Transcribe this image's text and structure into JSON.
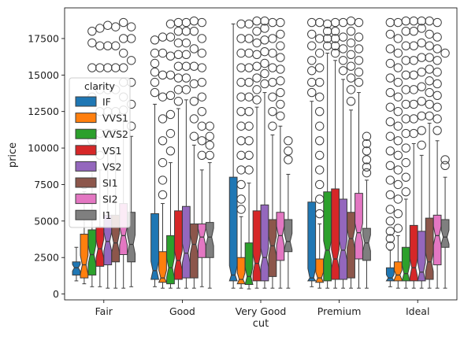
{
  "chart_data": {
    "type": "boxplot",
    "xlabel": "cut",
    "ylabel": "price",
    "categories": [
      "Fair",
      "Good",
      "Very Good",
      "Premium",
      "Ideal"
    ],
    "ylim": [
      -400,
      19600
    ],
    "yticks": [
      0,
      2500,
      5000,
      7500,
      10000,
      12500,
      15000,
      17500
    ],
    "ytick_labels": [
      "0",
      "2500",
      "5000",
      "7500",
      "10000",
      "12500",
      "15000",
      "17500"
    ],
    "notched": true,
    "legend": {
      "title": "clarity",
      "placement": "center-left"
    },
    "series": [
      {
        "name": "IF",
        "color": "#1f77b4",
        "boxes": [
          {
            "q1": 1300,
            "median": 1800,
            "q3": 2200,
            "wlo": 900,
            "whi": 3200,
            "outliers": []
          },
          {
            "q1": 1000,
            "median": 1600,
            "q3": 5500,
            "wlo": 500,
            "whi": 13000,
            "outliers": [
              13800,
              14500,
              15200,
              15800,
              16500,
              17400
            ]
          },
          {
            "q1": 900,
            "median": 1300,
            "q3": 8000,
            "wlo": 400,
            "whi": 18500,
            "outliers": []
          },
          {
            "q1": 900,
            "median": 1100,
            "q3": 6300,
            "wlo": 500,
            "whi": 13200,
            "outliers": [
              13800,
              14500,
              15300,
              16000,
              17000,
              17800,
              18600
            ]
          },
          {
            "q1": 900,
            "median": 1100,
            "q3": 1800,
            "wlo": 500,
            "whi": 3000,
            "outliers": [
              3300,
              3800,
              4300,
              5000,
              5800,
              6800,
              7800,
              8800,
              9800,
              10800,
              11800,
              12800,
              13800,
              14800,
              15800,
              16800,
              17800,
              18600
            ]
          }
        ]
      },
      {
        "name": "VVS1",
        "color": "#ff7f0e",
        "boxes": [
          {
            "q1": 1100,
            "median": 2000,
            "q3": 4100,
            "wlo": 700,
            "whi": 7000,
            "outliers": [
              7500
            ]
          },
          {
            "q1": 800,
            "median": 1100,
            "q3": 2900,
            "wlo": 400,
            "whi": 6200,
            "outliers": [
              6800,
              7800,
              9000,
              10500,
              12000,
              13500,
              15000,
              16500,
              17600
            ]
          },
          {
            "q1": 700,
            "median": 1000,
            "q3": 2500,
            "wlo": 400,
            "whi": 5300,
            "outliers": [
              5800,
              6500,
              7500,
              8500,
              9500,
              10500,
              11500,
              12500,
              13500,
              14500,
              15500,
              16500,
              17500,
              18500
            ]
          },
          {
            "q1": 800,
            "median": 1100,
            "q3": 2400,
            "wlo": 400,
            "whi": 4800,
            "outliers": [
              5500,
              6500,
              7500,
              8500,
              9500,
              10500,
              11500,
              12500,
              13500,
              14500,
              15500,
              16500,
              17500,
              18600
            ]
          },
          {
            "q1": 900,
            "median": 1300,
            "q3": 2200,
            "wlo": 400,
            "whi": 4000,
            "outliers": [
              4500,
              5500,
              6500,
              7500,
              8500,
              9500,
              10500,
              11500,
              12500,
              13500,
              14500,
              15500,
              16500,
              17500,
              18600
            ]
          }
        ]
      },
      {
        "name": "VVS2",
        "color": "#2ca02c",
        "boxes": [
          {
            "q1": 1300,
            "median": 2700,
            "q3": 4400,
            "wlo": 500,
            "whi": 9000,
            "outliers": [
              10500,
              12000,
              13500,
              15500,
              17200,
              18000
            ]
          },
          {
            "q1": 700,
            "median": 1800,
            "q3": 4000,
            "wlo": 400,
            "whi": 9000,
            "outliers": [
              9800,
              11000,
              12300,
              13600,
              15000,
              16300,
              17600,
              18500
            ]
          },
          {
            "q1": 650,
            "median": 1200,
            "q3": 3500,
            "wlo": 350,
            "whi": 7600,
            "outliers": [
              8500,
              9500,
              10500,
              11500,
              12500,
              13500,
              14500,
              15500,
              16500,
              17500,
              18500
            ]
          },
          {
            "q1": 900,
            "median": 3000,
            "q3": 7000,
            "wlo": 400,
            "whi": 16500,
            "outliers": [
              17000,
              17500,
              18000,
              18500
            ]
          },
          {
            "q1": 900,
            "median": 1400,
            "q3": 3200,
            "wlo": 400,
            "whi": 6500,
            "outliers": [
              7000,
              8000,
              9000,
              10000,
              11000,
              12000,
              13000,
              14000,
              15000,
              16000,
              17000,
              18000,
              18700
            ]
          }
        ]
      },
      {
        "name": "VS1",
        "color": "#d62728",
        "boxes": [
          {
            "q1": 1900,
            "median": 3100,
            "q3": 4600,
            "wlo": 500,
            "whi": 8500,
            "outliers": [
              9500,
              11000,
              12500,
              14000,
              15500,
              17000,
              18200
            ]
          },
          {
            "q1": 1000,
            "median": 2300,
            "q3": 5700,
            "wlo": 400,
            "whi": 12700,
            "outliers": [
              13200,
              14000,
              14800,
              15600,
              16400,
              17200,
              18000,
              18600
            ]
          },
          {
            "q1": 900,
            "median": 2100,
            "q3": 5700,
            "wlo": 400,
            "whi": 12800,
            "outliers": [
              13300,
              14000,
              14800,
              15600,
              16400,
              17200,
              18000,
              18700
            ]
          },
          {
            "q1": 1000,
            "median": 2400,
            "q3": 7200,
            "wlo": 400,
            "whi": 16000,
            "outliers": [
              16500,
              17000,
              17500,
              18000,
              18600
            ]
          },
          {
            "q1": 900,
            "median": 1800,
            "q3": 4700,
            "wlo": 400,
            "whi": 10300,
            "outliers": [
              11000,
              12000,
              13000,
              14000,
              15000,
              16000,
              17000,
              18000,
              18700
            ]
          }
        ]
      },
      {
        "name": "VS2",
        "color": "#9467bd",
        "boxes": [
          {
            "q1": 2000,
            "median": 3600,
            "q3": 5400,
            "wlo": 400,
            "whi": 10000,
            "outliers": [
              11000,
              12500,
              14000,
              15500,
              17000,
              18400
            ]
          },
          {
            "q1": 1100,
            "median": 2800,
            "q3": 6000,
            "wlo": 400,
            "whi": 13300,
            "outliers": [
              14000,
              14800,
              15600,
              16400,
              17200,
              18000,
              18600
            ]
          },
          {
            "q1": 900,
            "median": 2500,
            "q3": 6100,
            "wlo": 400,
            "whi": 13800,
            "outliers": [
              14400,
              15100,
              15800,
              16600,
              17400,
              18200,
              18700
            ]
          },
          {
            "q1": 1000,
            "median": 3000,
            "q3": 6500,
            "wlo": 400,
            "whi": 14700,
            "outliers": [
              15300,
              16000,
              16800,
              17600,
              18600
            ]
          },
          {
            "q1": 900,
            "median": 1500,
            "q3": 4300,
            "wlo": 400,
            "whi": 9500,
            "outliers": [
              10200,
              11200,
              12200,
              13200,
              14200,
              15200,
              16200,
              17200,
              18200,
              18700
            ]
          }
        ]
      },
      {
        "name": "SI1",
        "color": "#8c564b",
        "boxes": [
          {
            "q1": 2200,
            "median": 3500,
            "q3": 5400,
            "wlo": 400,
            "whi": 10000,
            "outliers": [
              11000,
              12500,
              14000,
              15500,
              17000,
              18300
            ]
          },
          {
            "q1": 1100,
            "median": 3400,
            "q3": 4800,
            "wlo": 400,
            "whi": 10200,
            "outliers": [
              10800,
              12000,
              13200,
              14400,
              15600,
              16800,
              18000,
              18700
            ]
          },
          {
            "q1": 1200,
            "median": 3300,
            "q3": 5100,
            "wlo": 400,
            "whi": 10900,
            "outliers": [
              11500,
              12500,
              13500,
              14500,
              15500,
              16500,
              17500,
              18600
            ]
          },
          {
            "q1": 1100,
            "median": 3800,
            "q3": 5600,
            "wlo": 400,
            "whi": 12600,
            "outliers": [
              13200,
              14000,
              14800,
              15600,
              16400,
              17200,
              18000,
              18700
            ]
          },
          {
            "q1": 1000,
            "median": 2200,
            "q3": 5200,
            "wlo": 400,
            "whi": 11700,
            "outliers": [
              12200,
              13000,
              13800,
              14600,
              15400,
              16200,
              17000,
              17800,
              18700
            ]
          }
        ]
      },
      {
        "name": "SI2",
        "color": "#e377c2",
        "boxes": [
          {
            "q1": 2700,
            "median": 4000,
            "q3": 6200,
            "wlo": 400,
            "whi": 12000,
            "outliers": [
              12600,
              13500,
              14500,
              15500,
              16500,
              17500,
              18600
            ]
          },
          {
            "q1": 2500,
            "median": 3900,
            "q3": 4800,
            "wlo": 500,
            "whi": 8500,
            "outliers": [
              9500,
              10500,
              11500,
              12500,
              13500,
              14500,
              15500,
              16500,
              17500,
              18600
            ]
          },
          {
            "q1": 2300,
            "median": 4000,
            "q3": 5600,
            "wlo": 400,
            "whi": 11500,
            "outliers": [
              12200,
              13000,
              13800,
              14600,
              15400,
              16200,
              17000,
              17800,
              18600
            ]
          },
          {
            "q1": 2400,
            "median": 4200,
            "q3": 6900,
            "wlo": 400,
            "whi": 13800,
            "outliers": [
              14500,
              15200,
              16000,
              16800,
              17600,
              18600
            ]
          },
          {
            "q1": 2000,
            "median": 4000,
            "q3": 5400,
            "wlo": 400,
            "whi": 10500,
            "outliers": [
              11200,
              12000,
              12800,
              13600,
              14400,
              15200,
              16000,
              16800,
              17600,
              18600
            ]
          }
        ]
      },
      {
        "name": "I1",
        "color": "#7f7f7f",
        "boxes": [
          {
            "q1": 2200,
            "median": 3400,
            "q3": 5600,
            "wlo": 500,
            "whi": 10800,
            "outliers": [
              11500,
              13000,
              14500,
              16000,
              17500,
              18300
            ]
          },
          {
            "q1": 2500,
            "median": 3900,
            "q3": 4900,
            "wlo": 400,
            "whi": 9000,
            "outliers": [
              9500,
              10200,
              10800,
              11500
            ]
          },
          {
            "q1": 2900,
            "median": 3600,
            "q3": 5100,
            "wlo": 400,
            "whi": 8200,
            "outliers": [
              9200,
              9800,
              10500
            ]
          },
          {
            "q1": 2300,
            "median": 3500,
            "q3": 4500,
            "wlo": 400,
            "whi": 7800,
            "outliers": [
              8300,
              8700,
              9200,
              9800,
              10300,
              10800
            ]
          },
          {
            "q1": 3200,
            "median": 3900,
            "q3": 5100,
            "wlo": 400,
            "whi": 8000,
            "outliers": [
              8800,
              9200,
              16500
            ]
          }
        ]
      }
    ]
  }
}
